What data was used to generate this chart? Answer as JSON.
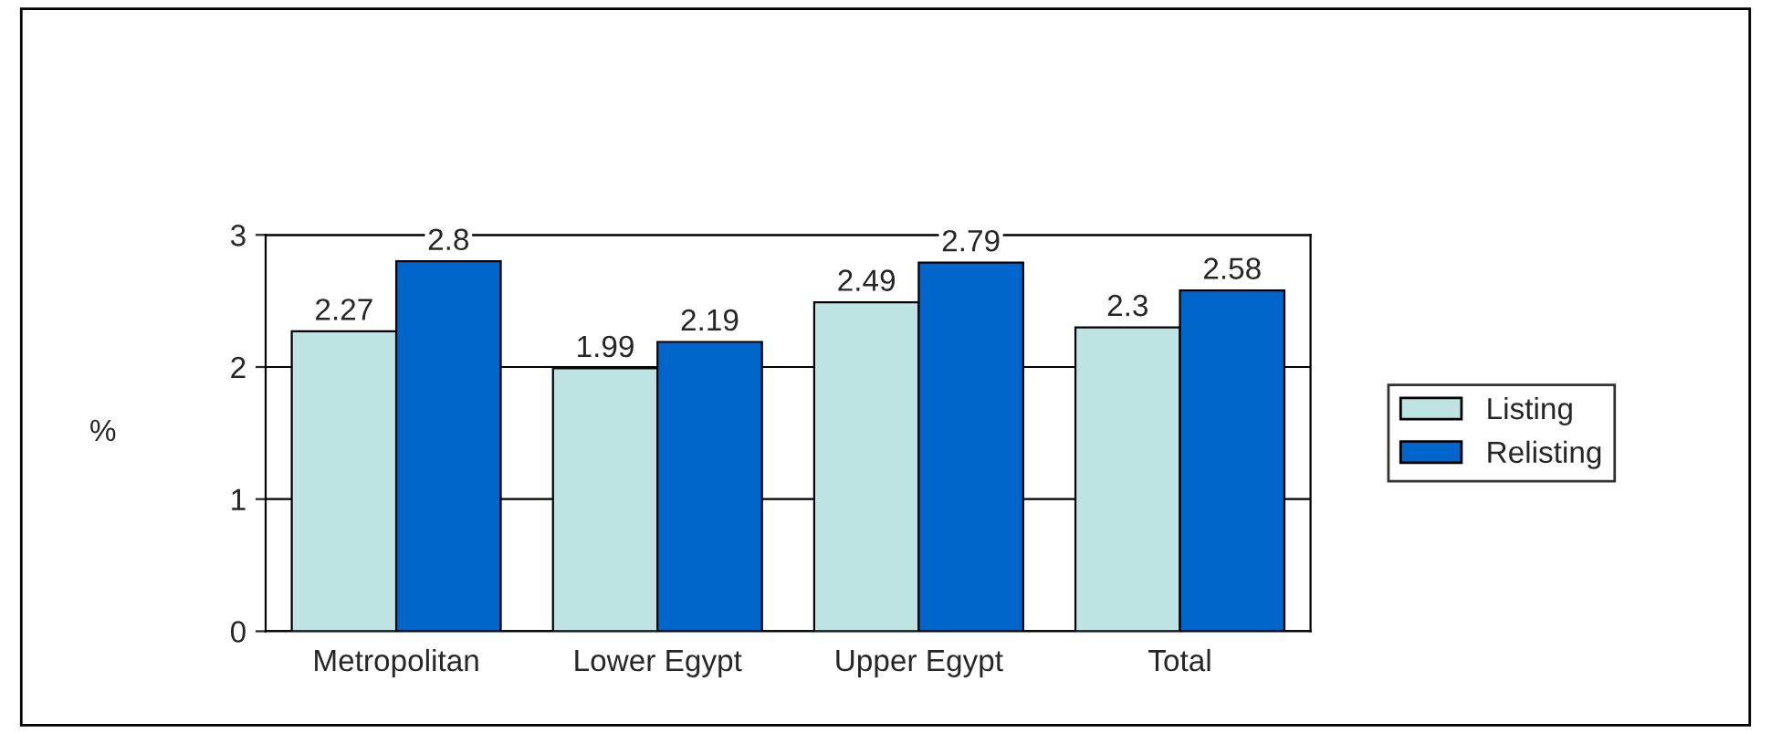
{
  "chart_data": {
    "type": "bar",
    "ylabel": "%",
    "categories": [
      "Metropolitan",
      "Lower Egypt",
      "Upper Egypt",
      "Total"
    ],
    "series": [
      {
        "name": "Listing",
        "color": "#bde3e3",
        "values": [
          2.27,
          1.99,
          2.49,
          2.3
        ]
      },
      {
        "name": "Relisting",
        "color": "#0066cc",
        "values": [
          2.8,
          2.19,
          2.79,
          2.58
        ]
      }
    ],
    "ylim": [
      0,
      3
    ],
    "yticks": [
      0,
      1,
      2,
      3
    ],
    "grid": "y",
    "legend": "right",
    "data_labels": true
  }
}
